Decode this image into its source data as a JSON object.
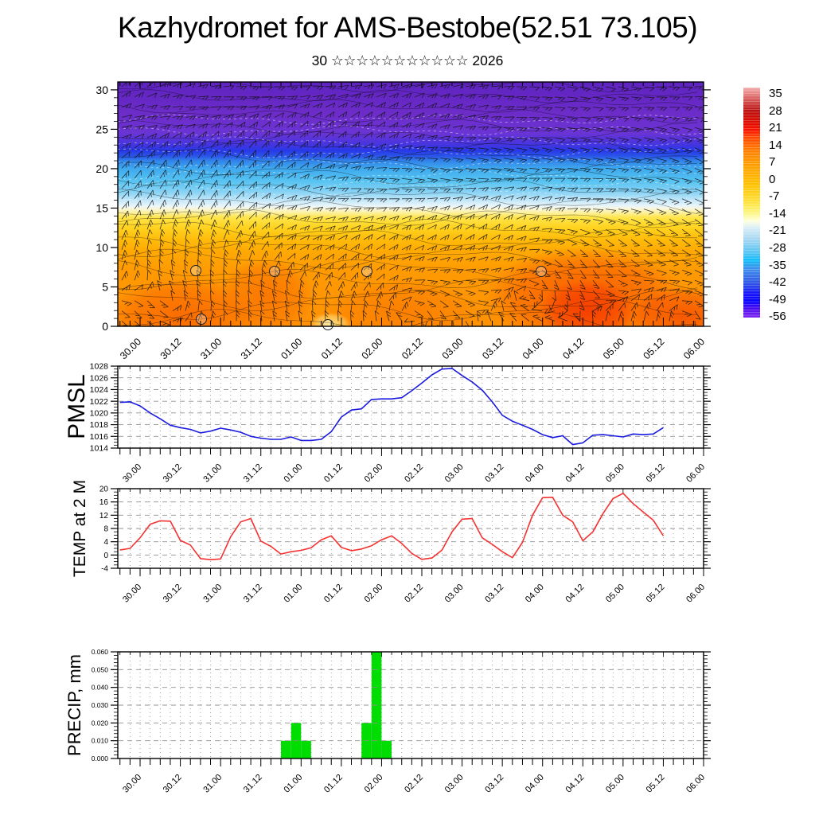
{
  "title": "Kazhydromet for AMS-Bestobe(52.51 73.105)",
  "subtitle": "30 ☆☆☆☆☆☆☆☆☆☆☆ 2026",
  "x_axis": {
    "tick_labels": [
      "30.00",
      "30.12",
      "31.00",
      "31.12",
      "01.00",
      "01.12",
      "02.00",
      "02.12",
      "03.00",
      "03.12",
      "04.00",
      "04.12",
      "05.00",
      "05.12",
      "06.00"
    ],
    "minor_step_hours": 3,
    "major_step_hours": 12,
    "series_step_hours": 3,
    "series_start_hours": -6
  },
  "colorbar": {
    "tick_labels": [
      "35",
      "28",
      "21",
      "14",
      "7",
      "0",
      "-7",
      "-14",
      "-21",
      "-28",
      "-35",
      "-42",
      "-49",
      "-56"
    ],
    "gradient_stops": [
      [
        0,
        "#f5aeae"
      ],
      [
        0.05,
        "#d95c5c"
      ],
      [
        0.1,
        "#bb1111"
      ],
      [
        0.14,
        "#d50d02"
      ],
      [
        0.18,
        "#f51000"
      ],
      [
        0.22,
        "#ff4c00"
      ],
      [
        0.28,
        "#ff8400"
      ],
      [
        0.35,
        "#ffa400"
      ],
      [
        0.42,
        "#ffc100"
      ],
      [
        0.5,
        "#ffe23e"
      ],
      [
        0.55,
        "#fbf88c"
      ],
      [
        0.58,
        "#ffffdf"
      ],
      [
        0.61,
        "#d8eef8"
      ],
      [
        0.66,
        "#a5d6f1"
      ],
      [
        0.72,
        "#52c3f3"
      ],
      [
        0.75,
        "#12bdfa"
      ],
      [
        0.79,
        "#3f8deb"
      ],
      [
        0.85,
        "#2e55e5"
      ],
      [
        0.9,
        "#140ffb"
      ],
      [
        0.93,
        "#0703ff"
      ],
      [
        0.96,
        "#4a0cf0"
      ],
      [
        1,
        "#8127f0"
      ]
    ]
  },
  "chart_data": [
    {
      "id": "cross-section",
      "type": "heatmap",
      "ylabel": "",
      "ylim": [
        0,
        31
      ],
      "ytick_labels": [
        "0",
        "5",
        "10",
        "15",
        "20",
        "25",
        "30"
      ],
      "yminor_step": 1,
      "legend_position": "right-colorbar",
      "temp_color_bands": [
        [
          31,
          "#5e23c0"
        ],
        [
          27,
          "#6c2cc8"
        ],
        [
          24.5,
          "#6a34d4"
        ],
        [
          23,
          "#4335e0"
        ],
        [
          22.3,
          "#2839e8"
        ],
        [
          21.6,
          "#2b55e8"
        ],
        [
          21,
          "#3184ea"
        ],
        [
          20,
          "#3fa9ee"
        ],
        [
          18.5,
          "#55c2f2"
        ],
        [
          17,
          "#8ad3f5"
        ],
        [
          16,
          "#c3e7f9"
        ],
        [
          15.3,
          "#e8f5fb"
        ],
        [
          14.9,
          "#f8f6d8"
        ],
        [
          14.4,
          "#fdf09b"
        ],
        [
          13.8,
          "#ffe54a"
        ],
        [
          12.5,
          "#ffd21f"
        ],
        [
          11,
          "#ffbb0a"
        ],
        [
          9.5,
          "#ffa904"
        ],
        [
          7,
          "#ff9a03"
        ],
        [
          0,
          "#ff9104"
        ]
      ],
      "warm_cores": [
        [
          230,
          398,
          95,
          50,
          "#fa6800",
          0.9
        ],
        [
          335,
          372,
          60,
          48,
          "#fa7200",
          0.85
        ],
        [
          505,
          392,
          95,
          42,
          "#fb7b00",
          0.8
        ],
        [
          735,
          372,
          125,
          62,
          "#f95a00",
          0.9
        ],
        [
          738,
          390,
          60,
          38,
          "#f53b00",
          0.9
        ],
        [
          858,
          398,
          65,
          38,
          "#f64e00",
          0.85
        ],
        [
          415,
          407,
          26,
          14,
          "#ffe78a",
          0.9
        ]
      ],
      "vortex_markers": [
        [
          246,
          340
        ],
        [
          345,
          341
        ],
        [
          461,
          341
        ],
        [
          680,
          341
        ],
        [
          253,
          401
        ],
        [
          412,
          408
        ]
      ]
    },
    {
      "id": "pmsl",
      "type": "line",
      "ylabel": "PMSL",
      "color": "#1a1ae0",
      "ylim": [
        1014,
        1028
      ],
      "ytick_labels": [
        "1014",
        "1016",
        "1018",
        "1020",
        "1022",
        "1024",
        "1026",
        "1028"
      ],
      "yminor_step": 0.5,
      "values": [
        1021.8,
        1021.9,
        1021.2,
        1020.0,
        1019.0,
        1017.9,
        1017.5,
        1017.2,
        1016.6,
        1016.9,
        1017.4,
        1017.1,
        1016.7,
        1016.0,
        1015.7,
        1015.5,
        1015.5,
        1015.9,
        1015.3,
        1015.3,
        1015.5,
        1016.8,
        1019.3,
        1020.5,
        1020.7,
        1022.3,
        1022.4,
        1022.4,
        1022.6,
        1023.8,
        1025.1,
        1026.5,
        1027.5,
        1027.6,
        1026.4,
        1025.3,
        1023.9,
        1021.9,
        1019.6,
        1018.6,
        1017.9,
        1017.2,
        1016.3,
        1015.8,
        1016.1,
        1014.6,
        1014.9,
        1016.2,
        1016.3,
        1016.1,
        1015.9,
        1016.4,
        1016.3,
        1016.4,
        1017.5
      ]
    },
    {
      "id": "temp2m",
      "type": "line",
      "ylabel": "TEMP at 2 M",
      "color": "#f53232",
      "ylim": [
        -4,
        20
      ],
      "ytick_labels": [
        "-4",
        "0",
        "4",
        "8",
        "12",
        "16",
        "20"
      ],
      "yminor_step": 1,
      "values": [
        1.5,
        2.0,
        5.2,
        9.3,
        10.3,
        10.2,
        4.4,
        3.0,
        -1.1,
        -1.4,
        -1.2,
        5.5,
        10.0,
        11.0,
        4.2,
        2.6,
        0.3,
        1.0,
        1.4,
        2.2,
        4.6,
        5.8,
        2.3,
        1.3,
        1.8,
        2.8,
        4.6,
        5.8,
        3.5,
        0.5,
        -1.3,
        -0.9,
        1.5,
        7.0,
        10.8,
        11.0,
        5.2,
        3.2,
        1.0,
        -0.8,
        3.8,
        12.0,
        17.3,
        17.4,
        12.0,
        10.0,
        4.3,
        7.0,
        12.5,
        17.0,
        18.6,
        15.5,
        13.0,
        10.5,
        5.8
      ]
    },
    {
      "id": "precip",
      "type": "bar",
      "ylabel": "PRECIP, mm",
      "color": "#00dd00",
      "ylim": [
        0,
        0.06
      ],
      "ytick_labels": [
        "0.000",
        "0.010",
        "0.020",
        "0.030",
        "0.040",
        "0.050",
        "0.060"
      ],
      "yminor_step": 0.002,
      "bars": [
        {
          "start_hour": 42,
          "mm": 0.01
        },
        {
          "start_hour": 45,
          "mm": 0.02
        },
        {
          "start_hour": 48,
          "mm": 0.01
        },
        {
          "start_hour": 66,
          "mm": 0.02
        },
        {
          "start_hour": 69,
          "mm": 0.06
        },
        {
          "start_hour": 72,
          "mm": 0.01
        }
      ]
    }
  ]
}
